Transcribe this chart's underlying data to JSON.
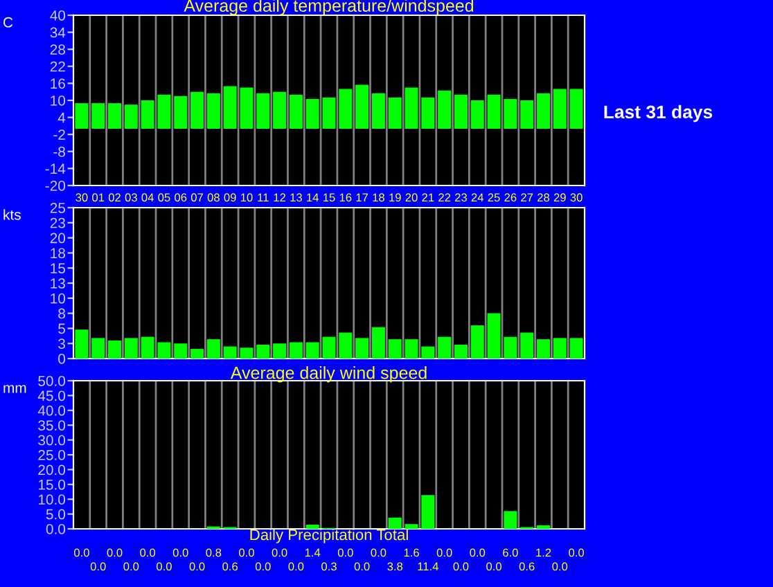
{
  "chart_data": [
    {
      "type": "bar",
      "title": "Average daily temperature/windspeed",
      "ylabel": "C",
      "categories": [
        "30",
        "01",
        "02",
        "03",
        "04",
        "05",
        "06",
        "07",
        "08",
        "09",
        "10",
        "11",
        "12",
        "13",
        "14",
        "15",
        "16",
        "17",
        "18",
        "19",
        "20",
        "21",
        "22",
        "23",
        "24",
        "25",
        "26",
        "27",
        "28",
        "29",
        "30"
      ],
      "series": [
        {
          "color": "#00ff00",
          "values": [
            9,
            9,
            9,
            8.5,
            10,
            12,
            11.5,
            13,
            12.5,
            15,
            14.5,
            12.5,
            13,
            12,
            10.5,
            11,
            14,
            15.5,
            12.5,
            11,
            14.5,
            11,
            13.5,
            12,
            10,
            12,
            10.5,
            10,
            12.5,
            14,
            14
          ]
        }
      ],
      "ylim": [
        -20,
        40
      ],
      "yticks": [
        -20,
        -14,
        -8,
        -2,
        4,
        10,
        16,
        22,
        28,
        34,
        40
      ],
      "grid": "x",
      "tick_labels": "y",
      "annotations": [
        "Last 31 days"
      ]
    },
    {
      "type": "bar",
      "ylabel": "kts",
      "categories": [
        "30",
        "01",
        "02",
        "03",
        "04",
        "05",
        "06",
        "07",
        "08",
        "09",
        "10",
        "11",
        "12",
        "13",
        "14",
        "15",
        "16",
        "17",
        "18",
        "19",
        "20",
        "21",
        "22",
        "23",
        "24",
        "25",
        "26",
        "27",
        "28",
        "29",
        "30"
      ],
      "series": [
        {
          "color": "#00ff00",
          "values": [
            4.8,
            3.4,
            3,
            3.4,
            3.6,
            2.7,
            2.5,
            1.6,
            3.2,
            2,
            1.8,
            2.3,
            2.5,
            2.7,
            2.7,
            3.6,
            4.3,
            3.4,
            5.2,
            3.2,
            3.2,
            2,
            3.6,
            2.3,
            5.5,
            7.5,
            3.6,
            4.3,
            3.2,
            3.4,
            3.4
          ]
        }
      ],
      "ylim": [
        0,
        25
      ],
      "yticks": [
        0,
        {
          "value": 2.5,
          "label": "3"
        },
        5,
        {
          "value": 7.5,
          "label": "8"
        },
        10,
        {
          "value": 12.5,
          "label": "13"
        },
        15,
        {
          "value": 17.5,
          "label": "18"
        },
        20,
        {
          "value": 22.5,
          "label": "23"
        },
        25
      ],
      "grid": "x"
    },
    {
      "type": "bar",
      "title": "Average daily wind speed",
      "xlabel": "Daily Precipitation Total",
      "ylabel": "mm",
      "categories": [
        "30",
        "01",
        "02",
        "03",
        "04",
        "05",
        "06",
        "07",
        "08",
        "09",
        "10",
        "11",
        "12",
        "13",
        "14",
        "15",
        "16",
        "17",
        "18",
        "19",
        "20",
        "21",
        "22",
        "23",
        "24",
        "25",
        "26",
        "27",
        "28",
        "29",
        "30"
      ],
      "series": [
        {
          "color": "#00ff00",
          "values": [
            0,
            0,
            0,
            0,
            0,
            0,
            0,
            0,
            0.8,
            0.6,
            0,
            0,
            0,
            0,
            1.4,
            0.3,
            0,
            0,
            0,
            3.8,
            1.6,
            11.4,
            0,
            0,
            0,
            0,
            6,
            0.6,
            1.2,
            0,
            0
          ],
          "value_labels": [
            "0.0",
            "0.0",
            "0.0",
            "0.0",
            "0.0",
            "0.0",
            "0.0",
            "0.0",
            "0.8",
            "0.6",
            "0.0",
            "0.0",
            "0.0",
            "0.0",
            "1.4",
            "0.3",
            "0.0",
            "0.0",
            "0.0",
            "3.8",
            "1.6",
            "11.4",
            "0.0",
            "0.0",
            "0.0",
            "0.0",
            "6.0",
            "0.6",
            "1.2",
            "0.0",
            "0.0"
          ]
        }
      ],
      "ylim": [
        0,
        50
      ],
      "yticks": [
        {
          "value": 0,
          "label": "0.0"
        },
        {
          "value": 5,
          "label": "5.0"
        },
        {
          "value": 10,
          "label": "10.0"
        },
        {
          "value": 15,
          "label": "15.0"
        },
        {
          "value": 20,
          "label": "20.0"
        },
        {
          "value": 25,
          "label": "25.0"
        },
        {
          "value": 30,
          "label": "30.0"
        },
        {
          "value": 35,
          "label": "35.0"
        },
        {
          "value": 40,
          "label": "40.0"
        },
        {
          "value": 45,
          "label": "45.0"
        },
        {
          "value": 50,
          "label": "50.0"
        }
      ],
      "grid": "x",
      "tick_labels": "y"
    }
  ]
}
